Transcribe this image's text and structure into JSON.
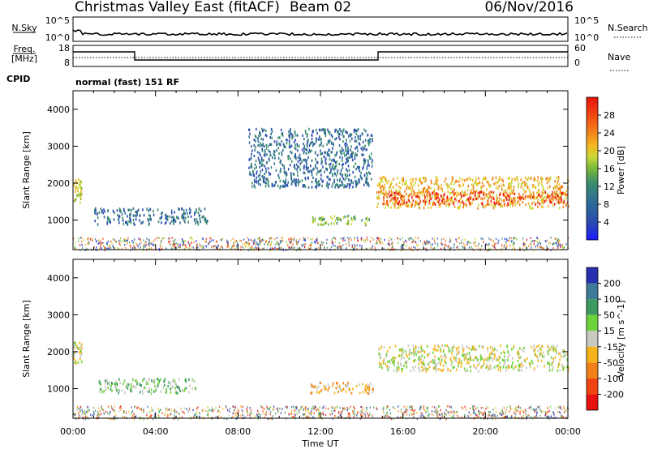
{
  "header": {
    "title": "Christmas Valley East (fitACF)",
    "beam": "Beam 02",
    "date": "06/Nov/2016"
  },
  "panels": {
    "nsky": {
      "label": "N.Sky",
      "ticks": [
        "10^5",
        "10^0"
      ]
    },
    "nsearch": {
      "label": "N.Search",
      "ticks": [
        "10^5",
        "10^0"
      ]
    },
    "freq": {
      "label_line1": "Freq.",
      "label_line2": "[MHz]",
      "ticks": [
        "18",
        "8"
      ]
    },
    "nave": {
      "label": "Nave",
      "ticks": [
        "60",
        "0"
      ]
    },
    "cpid": {
      "label": "CPID",
      "value": "normal (fast) 151 RF"
    }
  },
  "chart_data": [
    {
      "type": "heatmap",
      "name": "power",
      "ylabel": "Slant Range [km]",
      "xlabel": "",
      "xlim": [
        0,
        24
      ],
      "ylim": [
        200,
        4500
      ],
      "yticks": [
        "1000",
        "2000",
        "3000",
        "4000"
      ],
      "colorbar": {
        "label": "Power [dB]",
        "ticks": [
          "4",
          "8",
          "12",
          "16",
          "20",
          "24",
          "28"
        ],
        "range": [
          0,
          32
        ],
        "colors": [
          "#1a1aff",
          "#2a4ab0",
          "#2e6e95",
          "#3b8c6e",
          "#78b83a",
          "#c8d83a",
          "#f4b820",
          "#f2801a",
          "#f04510",
          "#e8120e"
        ]
      },
      "regions": [
        {
          "t0": 0.0,
          "t1": 0.4,
          "r0": 1500,
          "r1": 2200,
          "level": 5
        },
        {
          "t0": 1.0,
          "t1": 6.5,
          "r0": 900,
          "r1": 1350,
          "level": 2
        },
        {
          "t0": 8.5,
          "t1": 14.5,
          "r0": 1900,
          "r1": 3500,
          "level": 2
        },
        {
          "t0": 11.5,
          "t1": 14.5,
          "r0": 900,
          "r1": 1150,
          "level": 4
        },
        {
          "t0": 14.7,
          "t1": 24.0,
          "r0": 1350,
          "r1": 2200,
          "level": 6
        },
        {
          "t0": 15.0,
          "t1": 23.8,
          "r0": 1450,
          "r1": 1800,
          "level": 8
        }
      ]
    },
    {
      "type": "heatmap",
      "name": "velocity",
      "ylabel": "Slant Range [km]",
      "xlabel": "Time UT",
      "xlim": [
        0,
        24
      ],
      "ylim": [
        200,
        4500
      ],
      "xticks": [
        "00:00",
        "04:00",
        "08:00",
        "12:00",
        "16:00",
        "20:00",
        "00:00"
      ],
      "yticks": [
        "1000",
        "2000",
        "3000",
        "4000"
      ],
      "colorbar": {
        "label": "Velocity [m s^-1]",
        "ticks": [
          "200",
          "100",
          "50",
          "15",
          "-15",
          "-50",
          "-100",
          "-200"
        ],
        "colors": [
          "#2830b0",
          "#3e7a9a",
          "#3c9a60",
          "#6ed23a",
          "#c8c8c0",
          "#f4b41a",
          "#f28018",
          "#f04512",
          "#e8120e"
        ]
      },
      "regions": [
        {
          "t0": 0.0,
          "t1": 0.4,
          "r0": 1700,
          "r1": 2300,
          "level": 4
        },
        {
          "t0": 1.2,
          "t1": 6.0,
          "r0": 900,
          "r1": 1300,
          "level": 3
        },
        {
          "t0": 11.5,
          "t1": 14.6,
          "r0": 900,
          "r1": 1200,
          "level": 5
        },
        {
          "t0": 14.8,
          "t1": 24.0,
          "r0": 1500,
          "r1": 2200,
          "level": 4
        }
      ]
    }
  ]
}
